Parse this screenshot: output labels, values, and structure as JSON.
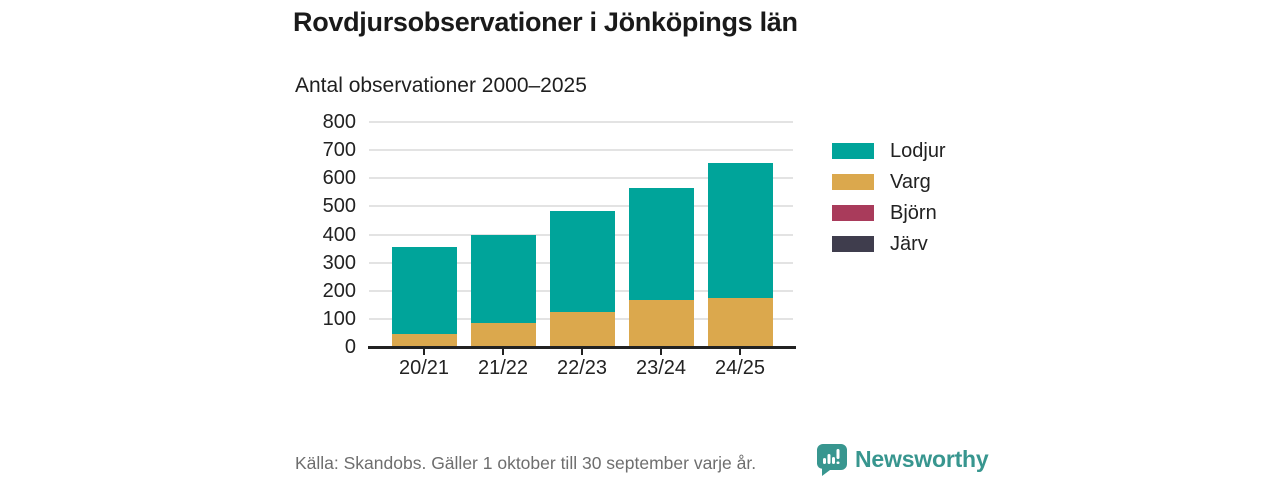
{
  "title": "Rovdjursobservationer i Jönköpings län",
  "subtitle": "Antal observationer 2000–2025",
  "footer": {
    "source": "Källa: Skandobs. Gäller 1 oktober till 30 september varje år.",
    "brand": "Newsworthy"
  },
  "colors": {
    "lodjur": "#00A49A",
    "varg": "#DBA84D",
    "bjorn": "#A93B5B",
    "jarv": "#3F3D4D",
    "axis": "#222222",
    "grid": "#E3E3E3",
    "brand_teal": "#38968F",
    "footer_text": "#6E6E6E"
  },
  "legend": [
    {
      "label": "Lodjur",
      "color": "#00A49A"
    },
    {
      "label": "Varg",
      "color": "#DBA84D"
    },
    {
      "label": "Björn",
      "color": "#A93B5B"
    },
    {
      "label": "Järv",
      "color": "#3F3D4D"
    }
  ],
  "chart_data": {
    "type": "bar",
    "stacked": true,
    "title": "Rovdjursobservationer i Jönköpings län",
    "subtitle": "Antal observationer 2000–2025",
    "categories": [
      "20/21",
      "21/22",
      "22/23",
      "23/24",
      "24/25"
    ],
    "series": [
      {
        "name": "Lodjur",
        "color": "#00A49A",
        "values": [
          307,
          313,
          361,
          398,
          480
        ]
      },
      {
        "name": "Varg",
        "color": "#DBA84D",
        "values": [
          48,
          87,
          124,
          167,
          175
        ]
      },
      {
        "name": "Björn",
        "color": "#A93B5B",
        "values": [
          0,
          0,
          0,
          0,
          0
        ]
      },
      {
        "name": "Järv",
        "color": "#3F3D4D",
        "values": [
          0,
          0,
          0,
          0,
          0
        ]
      }
    ],
    "stack_totals": [
      355,
      400,
      485,
      565,
      655
    ],
    "stack_order_bottom_to_top": [
      "Järv",
      "Björn",
      "Varg",
      "Lodjur"
    ],
    "xlabel": "",
    "ylabel": "",
    "ylim": [
      0,
      800
    ],
    "yticks": [
      0,
      100,
      200,
      300,
      400,
      500,
      600,
      700,
      800
    ],
    "grid": true,
    "legend_position": "right"
  }
}
